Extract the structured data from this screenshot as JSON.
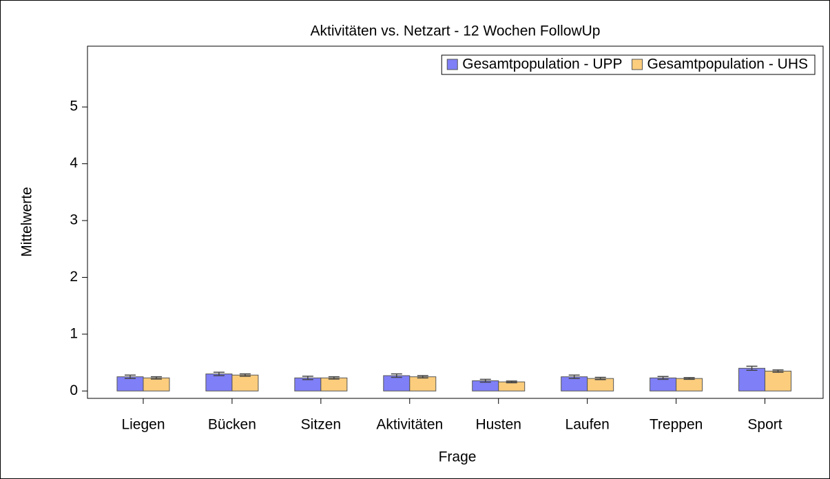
{
  "chart_data": {
    "type": "bar",
    "title": "Aktivitäten vs. Netzart - 12 Wochen FollowUp",
    "x_label": "Frage",
    "y_label": "Mittelwerte",
    "categories": [
      "Liegen",
      "Bücken",
      "Sitzen",
      "Aktivitäten",
      "Husten",
      "Laufen",
      "Treppen",
      "Sport"
    ],
    "series": [
      {
        "name": "Gesamtpopulation - UPP",
        "color": "#7f7ff7",
        "values": [
          0.25,
          0.3,
          0.23,
          0.27,
          0.18,
          0.25,
          0.23,
          0.4
        ],
        "errors": [
          0.03,
          0.03,
          0.03,
          0.03,
          0.025,
          0.03,
          0.025,
          0.035
        ]
      },
      {
        "name": "Gesamtpopulation - UHS",
        "color": "#fbcd7d",
        "values": [
          0.23,
          0.28,
          0.23,
          0.25,
          0.16,
          0.22,
          0.22,
          0.35
        ],
        "errors": [
          0.02,
          0.02,
          0.02,
          0.02,
          0.015,
          0.02,
          0.015,
          0.02
        ]
      }
    ],
    "ylim": [
      -0.13,
      6.07
    ],
    "yticks": [
      0,
      1,
      2,
      3,
      4,
      5
    ],
    "legend": "top-right",
    "grid": false
  }
}
